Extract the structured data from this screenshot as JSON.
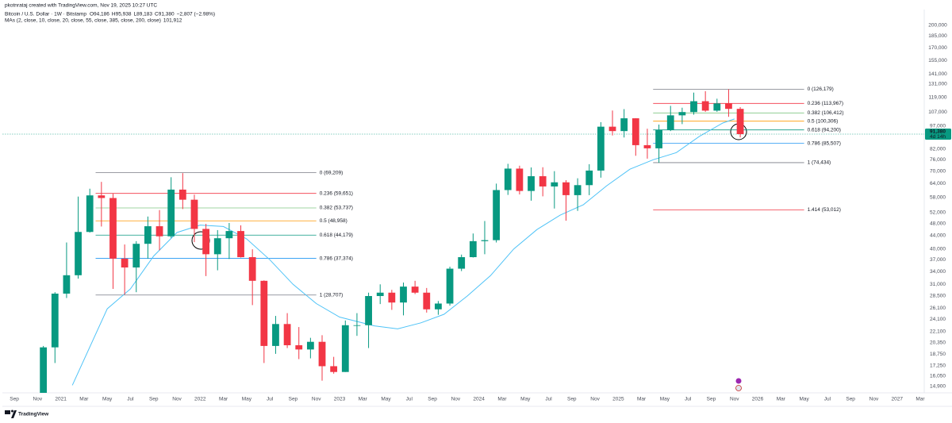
{
  "header": {
    "credit": "pkotnrataj created with TradingView.com, Nov 19, 2025 10:27 UTC",
    "logo": "TradingView"
  },
  "chart_data": {
    "type": "candlestick",
    "symbol": "Bitcoin / U.S. Dollar · 1W · Bitstamp",
    "ohlc_legend": {
      "labels": [
        "O",
        "H",
        "L",
        "C"
      ],
      "values": [
        94186,
        95938,
        89183,
        91380
      ],
      "value_labels": [
        "94,186",
        "95,938",
        "89,183",
        "91,380"
      ],
      "change": "−2,807 (−2.98%)"
    },
    "ma_legend": {
      "text": "MAs (2, close, 10, close, 20, close, 55, close, 385, close, 200, close)",
      "value": 101912,
      "value_label": "101,912"
    },
    "log_scale": true,
    "grid": false,
    "up_color": "#089981",
    "down_color": "#f23645",
    "x": [
      "2020-11",
      "2020-12",
      "2021-01",
      "2021-02",
      "2021-03",
      "2021-04",
      "2021-05",
      "2021-06",
      "2021-07",
      "2021-08",
      "2021-09",
      "2021-10",
      "2021-11",
      "2021-12",
      "2022-01",
      "2022-02",
      "2022-03",
      "2022-04",
      "2022-05",
      "2022-06",
      "2022-07",
      "2022-08",
      "2022-09",
      "2022-10",
      "2022-11",
      "2022-12",
      "2023-01",
      "2023-02",
      "2023-03",
      "2023-04",
      "2023-05",
      "2023-06",
      "2023-07",
      "2023-08",
      "2023-09",
      "2023-10",
      "2023-11",
      "2023-12",
      "2024-01",
      "2024-02",
      "2024-03",
      "2024-04",
      "2024-05",
      "2024-06",
      "2024-07",
      "2024-08",
      "2024-09",
      "2024-10",
      "2024-11",
      "2024-12",
      "2025-01",
      "2025-02",
      "2025-03",
      "2025-04",
      "2025-05",
      "2025-06",
      "2025-07",
      "2025-08",
      "2025-09",
      "2025-10",
      "2025-11"
    ],
    "open": [
      13800,
      19700,
      29000,
      33100,
      45200,
      58800,
      57700,
      37300,
      35000,
      41500,
      47100,
      43800,
      61300,
      57000,
      46200,
      38500,
      43200,
      45500,
      37700,
      31800,
      19900,
      23300,
      20000,
      19400,
      20500,
      17200,
      16500,
      23100,
      23100,
      28500,
      29200,
      27200,
      30500,
      29200,
      25900,
      27000,
      34700,
      37700,
      42300,
      42600,
      61100,
      71300,
      60700,
      67500,
      62700,
      64600,
      58900,
      63300,
      70300,
      96400,
      93400,
      102400,
      84400,
      82500,
      94200,
      104600,
      107100,
      115800,
      108200,
      114000,
      109600
    ],
    "high": [
      19900,
      29300,
      41900,
      58300,
      61700,
      64800,
      59500,
      41300,
      42300,
      50500,
      52900,
      67000,
      69000,
      59100,
      47900,
      45800,
      48200,
      47400,
      39900,
      31900,
      24700,
      25200,
      22800,
      21100,
      21500,
      18400,
      23900,
      25200,
      29200,
      31000,
      29800,
      31400,
      31800,
      30200,
      27500,
      35200,
      38400,
      44700,
      48900,
      64000,
      73800,
      72800,
      71900,
      72000,
      70000,
      65600,
      66500,
      73600,
      99600,
      108300,
      109400,
      102500,
      95000,
      97900,
      112000,
      110500,
      123200,
      124500,
      117900,
      126200,
      111000
    ],
    "low": [
      13200,
      17600,
      28100,
      32300,
      45000,
      47000,
      30000,
      28800,
      29300,
      37300,
      39600,
      43300,
      53300,
      42000,
      32900,
      34300,
      37200,
      37600,
      26700,
      17600,
      18800,
      19600,
      18100,
      18200,
      15500,
      16300,
      16500,
      21400,
      19600,
      26900,
      25800,
      24800,
      28900,
      25300,
      24900,
      26600,
      34100,
      37600,
      38500,
      41900,
      59000,
      59200,
      56600,
      58400,
      53500,
      49000,
      52600,
      58900,
      66800,
      90500,
      89200,
      78200,
      76600,
      74400,
      93400,
      98200,
      105100,
      107300,
      107300,
      103500,
      89200
    ],
    "close": [
      19700,
      29000,
      33100,
      45200,
      58800,
      57700,
      37300,
      35000,
      41500,
      47100,
      43800,
      61300,
      57000,
      46200,
      38500,
      43200,
      45500,
      37700,
      31800,
      19900,
      23300,
      20000,
      19400,
      20500,
      17200,
      16500,
      23100,
      23100,
      28500,
      29200,
      27200,
      30500,
      29200,
      25900,
      27000,
      34700,
      37700,
      42300,
      42600,
      61100,
      71300,
      60700,
      67500,
      62700,
      64600,
      58900,
      63300,
      70300,
      96400,
      93400,
      102400,
      84400,
      82500,
      94200,
      104600,
      107100,
      115800,
      108200,
      114000,
      109600,
      91380
    ],
    "ma": {
      "color": "#4fc3f7",
      "x": [
        "2021-02",
        "2021-05",
        "2021-07",
        "2021-09",
        "2021-11",
        "2022-01",
        "2022-03",
        "2022-05",
        "2022-07",
        "2022-09",
        "2022-11",
        "2023-01",
        "2023-04",
        "2023-06",
        "2023-08",
        "2023-10",
        "2023-12",
        "2024-02",
        "2024-04",
        "2024-06",
        "2024-08",
        "2024-10",
        "2024-12",
        "2025-02",
        "2025-04",
        "2025-06",
        "2025-08",
        "2025-10",
        "2025-11"
      ],
      "values": [
        15000,
        26000,
        30000,
        38000,
        45000,
        47500,
        47000,
        43000,
        37000,
        31000,
        27000,
        24500,
        23000,
        22500,
        23500,
        25000,
        28500,
        33000,
        40000,
        46000,
        51000,
        55000,
        63000,
        71000,
        76000,
        80000,
        90000,
        99000,
        101900
      ]
    },
    "fib_sets": [
      {
        "x_range": [
          "2021-04",
          "2022-11"
        ],
        "levels": [
          {
            "value": 69209,
            "label": "0 (69,209)",
            "color": "#787b86"
          },
          {
            "value": 59651,
            "label": "0.236 (59,651)",
            "color": "#f23645"
          },
          {
            "value": 53737,
            "label": "0.382 (53,737)",
            "color": "#81c784"
          },
          {
            "value": 48958,
            "label": "0.5 (48,958)",
            "color": "#ff9800"
          },
          {
            "value": 44179,
            "label": "0.618 (44,179)",
            "color": "#089981"
          },
          {
            "value": 37374,
            "label": "0.786 (37,374)",
            "color": "#2196f3"
          },
          {
            "value": 28707,
            "label": "1 (28,707)",
            "color": "#787b86"
          }
        ]
      },
      {
        "x_range": [
          "2025-04",
          "2026-05"
        ],
        "levels": [
          {
            "value": 126179,
            "label": "0 (126,179)",
            "color": "#787b86"
          },
          {
            "value": 113967,
            "label": "0.236 (113,967)",
            "color": "#f23645"
          },
          {
            "value": 106412,
            "label": "0.382 (106,412)",
            "color": "#81c784"
          },
          {
            "value": 100306,
            "label": "0.5 (100,306)",
            "color": "#ff9800"
          },
          {
            "value": 94200,
            "label": "0.618 (94,200)",
            "color": "#089981"
          },
          {
            "value": 85507,
            "label": "0.786 (85,507)",
            "color": "#2196f3"
          },
          {
            "value": 74434,
            "label": "1 (74,434)",
            "color": "#787b86"
          },
          {
            "value": 53012,
            "label": "1.414 (53,012)",
            "color": "#f23645"
          }
        ]
      }
    ],
    "last_price": {
      "value": 91380,
      "label": "91,380",
      "countdown": "4d 14h",
      "color": "#089981"
    },
    "xlim": [
      "2020-08",
      "2027-03"
    ],
    "xticks": [
      {
        "value": "2020-09",
        "label": "Sep"
      },
      {
        "value": "2020-11",
        "label": "Nov"
      },
      {
        "value": "2021-01",
        "label": "2021"
      },
      {
        "value": "2021-03",
        "label": "Mar"
      },
      {
        "value": "2021-05",
        "label": "May"
      },
      {
        "value": "2021-07",
        "label": "Jul"
      },
      {
        "value": "2021-09",
        "label": "Sep"
      },
      {
        "value": "2021-11",
        "label": "Nov"
      },
      {
        "value": "2022-01",
        "label": "2022"
      },
      {
        "value": "2022-03",
        "label": "Mar"
      },
      {
        "value": "2022-05",
        "label": "May"
      },
      {
        "value": "2022-07",
        "label": "Jul"
      },
      {
        "value": "2022-09",
        "label": "Sep"
      },
      {
        "value": "2022-11",
        "label": "Nov"
      },
      {
        "value": "2023-01",
        "label": "2023"
      },
      {
        "value": "2023-03",
        "label": "Mar"
      },
      {
        "value": "2023-05",
        "label": "May"
      },
      {
        "value": "2023-07",
        "label": "Jul"
      },
      {
        "value": "2023-09",
        "label": "Sep"
      },
      {
        "value": "2023-11",
        "label": "Nov"
      },
      {
        "value": "2024-01",
        "label": "2024"
      },
      {
        "value": "2024-03",
        "label": "Mar"
      },
      {
        "value": "2024-05",
        "label": "May"
      },
      {
        "value": "2024-07",
        "label": "Jul"
      },
      {
        "value": "2024-09",
        "label": "Sep"
      },
      {
        "value": "2024-11",
        "label": "Nov"
      },
      {
        "value": "2025-01",
        "label": "2025"
      },
      {
        "value": "2025-03",
        "label": "Mar"
      },
      {
        "value": "2025-05",
        "label": "May"
      },
      {
        "value": "2025-07",
        "label": "Jul"
      },
      {
        "value": "2025-09",
        "label": "Sep"
      },
      {
        "value": "2025-11",
        "label": "Nov"
      },
      {
        "value": "2026-01",
        "label": "2026"
      },
      {
        "value": "2026-03",
        "label": "Mar"
      },
      {
        "value": "2026-05",
        "label": "May"
      },
      {
        "value": "2026-07",
        "label": "Jul"
      },
      {
        "value": "2026-09",
        "label": "Sep"
      },
      {
        "value": "2026-11",
        "label": "Nov"
      },
      {
        "value": "2027-01",
        "label": "2027"
      },
      {
        "value": "2027-03",
        "label": "Mar"
      }
    ],
    "ylim": [
      14200,
      224000
    ],
    "yticks": [
      {
        "value": 200000,
        "label": "200,000"
      },
      {
        "value": 185000,
        "label": "185,000"
      },
      {
        "value": 170000,
        "label": "170,000"
      },
      {
        "value": 155000,
        "label": "155,000"
      },
      {
        "value": 141000,
        "label": "141,000"
      },
      {
        "value": 131000,
        "label": "131,000"
      },
      {
        "value": 119000,
        "label": "119,000"
      },
      {
        "value": 107000,
        "label": "107,000"
      },
      {
        "value": 97000,
        "label": "97,000"
      },
      {
        "value": 82000,
        "label": "82,000"
      },
      {
        "value": 76000,
        "label": "76,000"
      },
      {
        "value": 70000,
        "label": "70,000"
      },
      {
        "value": 64000,
        "label": "64,000"
      },
      {
        "value": 58000,
        "label": "58,000"
      },
      {
        "value": 52000,
        "label": "52,000"
      },
      {
        "value": 48000,
        "label": "48,000"
      },
      {
        "value": 44000,
        "label": "44,000"
      },
      {
        "value": 40000,
        "label": "40,000"
      },
      {
        "value": 37000,
        "label": "37,000"
      },
      {
        "value": 34000,
        "label": "34,000"
      },
      {
        "value": 31000,
        "label": "31,000"
      },
      {
        "value": 28500,
        "label": "28,500"
      },
      {
        "value": 26100,
        "label": "26,100"
      },
      {
        "value": 24100,
        "label": "24,100"
      },
      {
        "value": 22100,
        "label": "22,100"
      },
      {
        "value": 20350,
        "label": "20,350"
      },
      {
        "value": 18750,
        "label": "18,750"
      },
      {
        "value": 17250,
        "label": "17,250"
      },
      {
        "value": 16050,
        "label": "16,050"
      },
      {
        "value": 14900,
        "label": "14,900"
      }
    ]
  }
}
